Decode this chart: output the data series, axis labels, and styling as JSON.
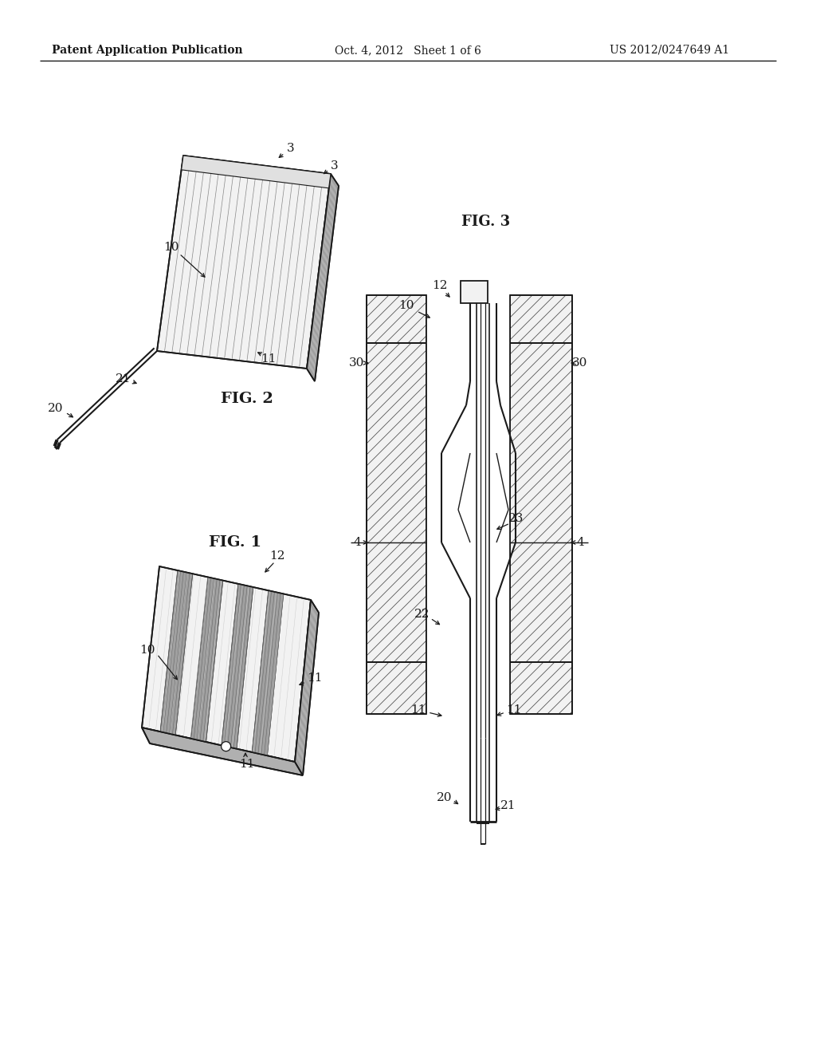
{
  "background_color": "#ffffff",
  "header_left": "Patent Application Publication",
  "header_mid": "Oct. 4, 2012   Sheet 1 of 6",
  "header_right": "US 2012/0247649 A1",
  "line_color": "#1a1a1a",
  "text_color": "#1a1a1a",
  "light_fill": "#f2f2f2",
  "mid_fill": "#d5d5d5",
  "dark_fill": "#b0b0b0",
  "white_fill": "#ffffff"
}
